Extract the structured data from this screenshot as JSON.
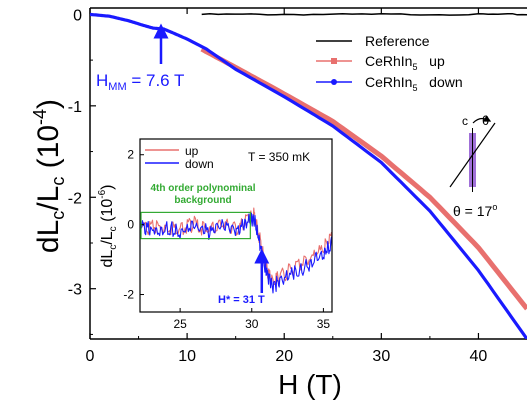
{
  "chart_data": {
    "type": "line",
    "xlabel": "H (T)",
    "ylabel": "dL_c/L_c (10^-4)",
    "xlim": [
      0,
      45
    ],
    "ylim": [
      -3.55,
      0.07
    ],
    "xticks": [
      0,
      10,
      20,
      30,
      40
    ],
    "yticks": [
      0,
      -1,
      -2,
      -3
    ],
    "xtick_labels": [
      "0",
      "10",
      "20",
      "30",
      "40"
    ],
    "ytick_labels": [
      "0",
      "-1",
      "-2",
      "-3"
    ],
    "grid": false,
    "legend_position": "top-right",
    "legend": [
      {
        "label": "Reference",
        "color": "#000000",
        "marker": "none"
      },
      {
        "label": "CeRhIn₅  up",
        "color": "#e8706e",
        "marker": "square"
      },
      {
        "label": "CeRhIn₅  down",
        "color": "#1a1aff",
        "marker": "circle"
      }
    ],
    "series": [
      {
        "name": "Reference",
        "color": "#000000",
        "x": [
          11.5,
          20,
          30,
          40,
          45
        ],
        "y": [
          0.0,
          0.0,
          0.0,
          0.0,
          0.0
        ]
      },
      {
        "name": "CeRhIn₅  up",
        "color": "#e8706e",
        "x": [
          11.5,
          15,
          20,
          25,
          30,
          35,
          40,
          45
        ],
        "y": [
          -0.38,
          -0.58,
          -0.87,
          -1.17,
          -1.55,
          -2.0,
          -2.55,
          -3.22
        ]
      },
      {
        "name": "CeRhIn₅  down",
        "color": "#1a1aff",
        "x": [
          0,
          2,
          4,
          5.5,
          6.5,
          7.6,
          8.5,
          10,
          12,
          15,
          20,
          25,
          30,
          35,
          40,
          45
        ],
        "y": [
          0.0,
          -0.02,
          -0.07,
          -0.12,
          -0.15,
          -0.16,
          -0.2,
          -0.27,
          -0.38,
          -0.6,
          -0.9,
          -1.22,
          -1.62,
          -2.15,
          -2.8,
          -3.55
        ]
      }
    ],
    "annotations": {
      "hmm_label": "H",
      "hmm_sub": "MM",
      "hmm_value": " = 7.6 T",
      "hmm_x": 7.6,
      "hmm_color": "#1a1aff",
      "angle_c": "c",
      "angle_theta": "θ",
      "angle_label": "θ = 17",
      "angle_sup": "o"
    },
    "inset": {
      "type": "line",
      "xlabel": "",
      "ylabel": "dL_c/L_c (10^-6)",
      "xlim": [
        22.2,
        35.6
      ],
      "ylim": [
        -2.5,
        2.45
      ],
      "xticks": [
        25,
        30,
        35
      ],
      "yticks": [
        2,
        0,
        -2
      ],
      "xtick_labels": [
        "25",
        "30",
        "35"
      ],
      "ytick_labels": [
        "2",
        "0",
        "-2"
      ],
      "temperature": "T = 350 mK",
      "box_label_line1": "4th order polynominal",
      "box_label_line2": "background",
      "box_color": "#33aa33",
      "box_x": [
        22.2,
        29.9
      ],
      "box_y": [
        -0.4,
        0.35
      ],
      "hstar_label": "H* = 31 T",
      "hstar_x": 30.7,
      "legend": [
        {
          "label": "up",
          "color": "#e8706e"
        },
        {
          "label": "down",
          "color": "#1a1aff"
        }
      ],
      "series": [
        {
          "name": "up",
          "color": "#e8706e",
          "x": [
            22.2,
            23,
            24,
            25,
            26,
            27,
            28,
            29,
            29.8,
            30.2,
            30.6,
            31.0,
            31.4,
            32,
            33,
            34,
            35,
            35.6
          ],
          "y": [
            0.05,
            0.0,
            0.05,
            -0.05,
            0.1,
            -0.1,
            0.1,
            -0.05,
            0.3,
            0.35,
            -0.4,
            -1.2,
            -1.55,
            -1.4,
            -1.15,
            -0.9,
            -0.6,
            -0.3
          ]
        },
        {
          "name": "down",
          "color": "#1a1aff",
          "x": [
            22.2,
            23,
            24,
            25,
            26,
            27,
            28,
            29,
            29.8,
            30.2,
            30.6,
            31.0,
            31.4,
            32,
            33,
            34,
            35,
            35.6
          ],
          "y": [
            0.0,
            -0.05,
            0.0,
            -0.1,
            0.05,
            -0.15,
            0.05,
            -0.1,
            0.2,
            0.25,
            -0.5,
            -1.3,
            -1.7,
            -1.55,
            -1.3,
            -1.05,
            -0.75,
            -0.45
          ]
        }
      ]
    }
  }
}
